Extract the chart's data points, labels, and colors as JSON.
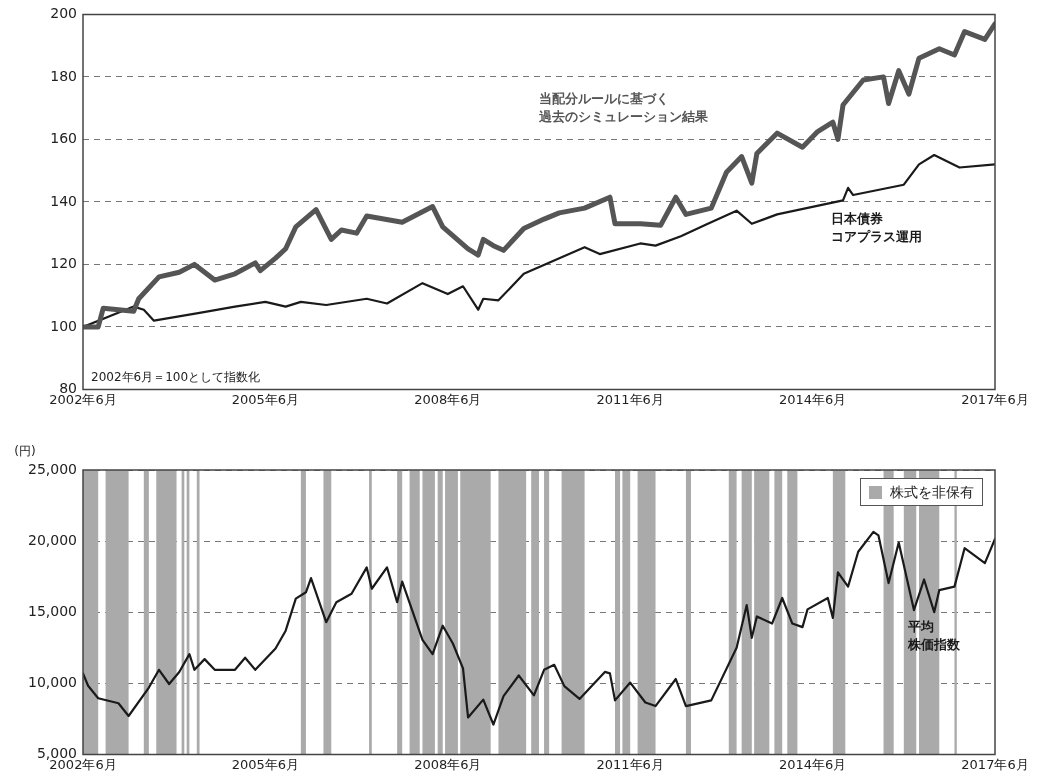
{
  "chart_data": [
    {
      "type": "line",
      "xlim": [
        "2002-06",
        "2017-06"
      ],
      "ylim": [
        80,
        200
      ],
      "yticks": [
        80,
        100,
        120,
        140,
        160,
        180,
        200
      ],
      "grid": "y",
      "xticks": [
        {
          "value": "2002-06",
          "label": "2002年6月"
        },
        {
          "value": "2005-06",
          "label": "2005年6月"
        },
        {
          "value": "2008-06",
          "label": "2008年6月"
        },
        {
          "value": "2011-06",
          "label": "2011年6月"
        },
        {
          "value": "2014-06",
          "label": "2014年6月"
        },
        {
          "value": "2017-06",
          "label": "2017年6月"
        }
      ],
      "annotations": [
        "2002年6月＝100として指数化"
      ],
      "series": [
        {
          "name": "当配分ルールに基づく過去のシミュレーション結果",
          "color": "#555555",
          "x": [
            "2002-06",
            "2002-09",
            "2002-10",
            "2003-04",
            "2003-05",
            "2003-09",
            "2004-01",
            "2004-04",
            "2004-08",
            "2004-12",
            "2005-04",
            "2005-05",
            "2005-08",
            "2005-10",
            "2005-12",
            "2006-04",
            "2006-07",
            "2006-09",
            "2006-12",
            "2007-02",
            "2007-09",
            "2008-03",
            "2008-05",
            "2008-10",
            "2008-12",
            "2009-01",
            "2009-03",
            "2009-05",
            "2009-09",
            "2010-01",
            "2010-04",
            "2010-09",
            "2011-02",
            "2011-03",
            "2011-08",
            "2011-12",
            "2012-03",
            "2012-05",
            "2012-10",
            "2013-01",
            "2013-04",
            "2013-06",
            "2013-07",
            "2013-11",
            "2014-04",
            "2014-07",
            "2014-10",
            "2014-11",
            "2014-12",
            "2015-04",
            "2015-08",
            "2015-09",
            "2015-11",
            "2016-01",
            "2016-03",
            "2016-07",
            "2016-10",
            "2016-12",
            "2017-04",
            "2017-06"
          ],
          "values": [
            100,
            100,
            106,
            105,
            109,
            116,
            117.5,
            120,
            115,
            117,
            120.5,
            118,
            122,
            125,
            132,
            137.5,
            128,
            131,
            130,
            135.5,
            133.5,
            138.5,
            132,
            125,
            123,
            128,
            126,
            124.5,
            131.5,
            134.5,
            136.5,
            138,
            141.5,
            133,
            133,
            132.5,
            141.5,
            136,
            138,
            149.5,
            154.5,
            146,
            155.5,
            162,
            157.5,
            162.5,
            165.5,
            160,
            171,
            179,
            180,
            171.5,
            182,
            174.5,
            186,
            189,
            187,
            194.5,
            192,
            197
          ]
        },
        {
          "name": "日本債券コアプラス運用",
          "color": "#1a1a1a",
          "x": [
            "2002-06",
            "2003-04",
            "2003-06",
            "2003-08",
            "2004-05",
            "2004-12",
            "2005-06",
            "2005-10",
            "2006-01",
            "2006-06",
            "2007-02",
            "2007-06",
            "2008-01",
            "2008-06",
            "2008-09",
            "2008-12",
            "2009-01",
            "2009-04",
            "2009-09",
            "2010-09",
            "2010-12",
            "2011-08",
            "2011-11",
            "2012-04",
            "2012-09",
            "2013-03",
            "2013-06",
            "2013-11",
            "2014-12",
            "2015-01",
            "2015-02",
            "2015-12",
            "2016-03",
            "2016-06",
            "2016-11",
            "2017-06"
          ],
          "values": [
            100,
            106.5,
            105.5,
            102,
            104.5,
            106.5,
            108,
            106.5,
            108,
            107,
            109,
            107.5,
            114,
            110.5,
            113,
            105.5,
            109,
            108.5,
            117,
            125.5,
            123.3,
            126.7,
            126,
            129,
            132.8,
            137.2,
            133,
            136,
            140.5,
            144.5,
            142.2,
            145.5,
            152,
            155,
            151,
            152
          ]
        }
      ]
    },
    {
      "type": "line",
      "ylabel": "(円)",
      "xlim": [
        "2002-06",
        "2017-06"
      ],
      "ylim": [
        5000,
        25000
      ],
      "grid": "y",
      "legend": "top right",
      "yticks": [
        {
          "value": 5000,
          "label": "5,000"
        },
        {
          "value": 10000,
          "label": "10,000"
        },
        {
          "value": 15000,
          "label": "15,000"
        },
        {
          "value": 20000,
          "label": "20,000"
        },
        {
          "value": 25000,
          "label": "25,000"
        }
      ],
      "xticks": [
        {
          "value": "2002-06",
          "label": "2002年6月"
        },
        {
          "value": "2005-06",
          "label": "2005年6月"
        },
        {
          "value": "2008-06",
          "label": "2008年6月"
        },
        {
          "value": "2011-06",
          "label": "2011年6月"
        },
        {
          "value": "2014-06",
          "label": "2014年6月"
        },
        {
          "value": "2017-06",
          "label": "2017年6月"
        }
      ],
      "bands": [
        {
          "axis": "x",
          "from": "2002-06-01",
          "to": "2002-09-01",
          "color": "#aaaaaa"
        },
        {
          "axis": "x",
          "from": "2002-10-15",
          "to": "2003-03-01",
          "color": "#aaaaaa"
        },
        {
          "axis": "x",
          "from": "2003-06-01",
          "to": "2003-07-01",
          "color": "#aaaaaa"
        },
        {
          "axis": "x",
          "from": "2003-08-15",
          "to": "2003-12-15",
          "color": "#aaaaaa"
        },
        {
          "axis": "x",
          "from": "2004-01-15",
          "to": "2004-02-01",
          "color": "#aaaaaa"
        },
        {
          "axis": "x",
          "from": "2004-02-15",
          "to": "2004-03-01",
          "color": "#aaaaaa"
        },
        {
          "axis": "x",
          "from": "2004-04-15",
          "to": "2004-05-01",
          "color": "#aaaaaa"
        },
        {
          "axis": "x",
          "from": "2006-01-01",
          "to": "2006-02-01",
          "color": "#aaaaaa"
        },
        {
          "axis": "x",
          "from": "2006-05-15",
          "to": "2006-07-01",
          "color": "#aaaaaa"
        },
        {
          "axis": "x",
          "from": "2007-02-15",
          "to": "2007-03-01",
          "color": "#aaaaaa"
        },
        {
          "axis": "x",
          "from": "2007-08-01",
          "to": "2007-09-01",
          "color": "#aaaaaa"
        },
        {
          "axis": "x",
          "from": "2007-10-15",
          "to": "2007-12-15",
          "color": "#aaaaaa"
        },
        {
          "axis": "x",
          "from": "2008-01-01",
          "to": "2008-03-15",
          "color": "#aaaaaa"
        },
        {
          "axis": "x",
          "from": "2008-04-01",
          "to": "2008-05-01",
          "color": "#aaaaaa"
        },
        {
          "axis": "x",
          "from": "2008-05-15",
          "to": "2008-08-01",
          "color": "#aaaaaa"
        },
        {
          "axis": "x",
          "from": "2008-08-15",
          "to": "2009-02-15",
          "color": "#aaaaaa"
        },
        {
          "axis": "x",
          "from": "2009-04-01",
          "to": "2009-09-15",
          "color": "#aaaaaa"
        },
        {
          "axis": "x",
          "from": "2009-10-15",
          "to": "2009-12-01",
          "color": "#aaaaaa"
        },
        {
          "axis": "x",
          "from": "2010-01-01",
          "to": "2010-02-01",
          "color": "#aaaaaa"
        },
        {
          "axis": "x",
          "from": "2010-04-15",
          "to": "2010-09-01",
          "color": "#aaaaaa"
        },
        {
          "axis": "x",
          "from": "2011-03-01",
          "to": "2011-04-01",
          "color": "#aaaaaa"
        },
        {
          "axis": "x",
          "from": "2011-04-15",
          "to": "2011-06-01",
          "color": "#aaaaaa"
        },
        {
          "axis": "x",
          "from": "2011-07-15",
          "to": "2011-11-01",
          "color": "#aaaaaa"
        },
        {
          "axis": "x",
          "from": "2012-05-01",
          "to": "2012-06-01",
          "color": "#aaaaaa"
        },
        {
          "axis": "x",
          "from": "2013-01-15",
          "to": "2013-03-01",
          "color": "#aaaaaa"
        },
        {
          "axis": "x",
          "from": "2013-04-01",
          "to": "2013-06-01",
          "color": "#aaaaaa"
        },
        {
          "axis": "x",
          "from": "2013-06-15",
          "to": "2013-09-15",
          "color": "#aaaaaa"
        },
        {
          "axis": "x",
          "from": "2013-10-15",
          "to": "2013-12-01",
          "color": "#aaaaaa"
        },
        {
          "axis": "x",
          "from": "2014-01-01",
          "to": "2014-03-01",
          "color": "#aaaaaa"
        },
        {
          "axis": "x",
          "from": "2014-10-01",
          "to": "2014-12-15",
          "color": "#aaaaaa"
        },
        {
          "axis": "x",
          "from": "2015-08-01",
          "to": "2015-10-01",
          "label": "株式を非保有",
          "color": "#aaaaaa"
        },
        {
          "axis": "x",
          "from": "2015-12-01",
          "to": "2016-02-15",
          "color": "#aaaaaa"
        },
        {
          "axis": "x",
          "from": "2016-03-01",
          "to": "2016-07-01",
          "color": "#aaaaaa"
        },
        {
          "axis": "x",
          "from": "2016-10-01",
          "to": "2016-10-15",
          "color": "#aaaaaa"
        }
      ],
      "series": [
        {
          "name": "平均株価指数",
          "color": "#1a1a1a",
          "x": [
            "2002-06",
            "2002-07",
            "2002-09",
            "2003-01",
            "2003-03",
            "2003-07",
            "2003-09",
            "2003-11",
            "2004-01",
            "2004-03",
            "2004-04",
            "2004-06",
            "2004-08",
            "2004-12",
            "2005-02",
            "2005-04",
            "2005-08",
            "2005-10",
            "2005-12",
            "2006-02",
            "2006-03",
            "2006-06",
            "2006-08",
            "2006-11",
            "2007-02",
            "2007-03",
            "2007-06",
            "2007-08",
            "2007-09",
            "2008-01",
            "2008-03",
            "2008-05",
            "2008-07",
            "2008-09",
            "2008-10",
            "2009-01",
            "2009-03",
            "2009-05",
            "2009-08",
            "2009-11",
            "2010-01",
            "2010-03",
            "2010-05",
            "2010-08",
            "2011-01",
            "2011-02",
            "2011-03",
            "2011-06",
            "2011-09",
            "2011-11",
            "2012-03",
            "2012-05",
            "2012-10",
            "2013-03",
            "2013-05",
            "2013-06",
            "2013-07",
            "2013-10",
            "2013-12",
            "2014-02",
            "2014-04",
            "2014-05",
            "2014-09",
            "2014-10",
            "2014-11",
            "2015-01",
            "2015-03",
            "2015-06",
            "2015-07",
            "2015-09",
            "2015-11",
            "2016-02",
            "2016-04",
            "2016-06",
            "2016-07",
            "2016-10",
            "2016-12",
            "2017-04",
            "2017-06"
          ],
          "values": [
            10700,
            9830,
            8950,
            8600,
            7700,
            9700,
            10950,
            9950,
            10800,
            12050,
            10950,
            11700,
            10950,
            10950,
            11800,
            10950,
            12450,
            13700,
            15950,
            16400,
            17400,
            14300,
            15700,
            16300,
            18150,
            16650,
            18150,
            15700,
            17150,
            13050,
            12050,
            14050,
            12800,
            11050,
            7600,
            8850,
            7100,
            9100,
            10550,
            9150,
            10950,
            11300,
            9800,
            8900,
            10800,
            10700,
            8800,
            10050,
            8650,
            8400,
            10300,
            8400,
            8800,
            12500,
            15500,
            13200,
            14700,
            14200,
            16000,
            14200,
            13950,
            15200,
            16000,
            14600,
            17800,
            16800,
            19250,
            20650,
            20400,
            17050,
            19900,
            15150,
            17300,
            15000,
            16550,
            16800,
            19500,
            18450,
            20150
          ]
        }
      ]
    }
  ]
}
